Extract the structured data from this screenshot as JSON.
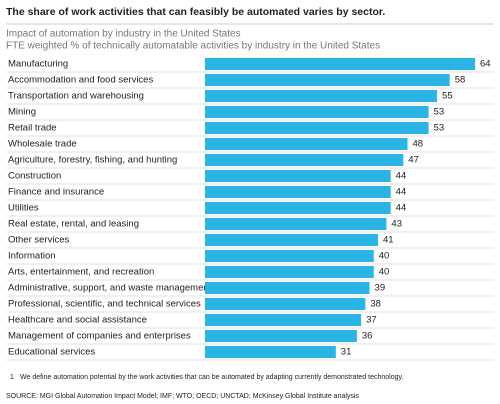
{
  "chart_data": {
    "type": "bar",
    "orientation": "horizontal",
    "title": "The share of work activities that can feasibly be automated varies by sector.",
    "subtitle": "Impact of automation by industry in the United States",
    "subtitle2": "FTE weighted % of technically automatable activities by industry in the United States",
    "categories": [
      "Manufacturing",
      "Accommodation and food services",
      "Transportation and warehousing",
      "Mining",
      "Retail trade",
      "Wholesale trade",
      "Agriculture, forestry, fishing, and hunting",
      "Construction",
      "Finance and insurance",
      "Utilities",
      "Real estate, rental, and leasing",
      "Other services",
      "Information",
      "Arts, entertainment, and recreation",
      "Administrative, support, and waste management",
      "Professional, scientific, and technical services",
      "Healthcare and social assistance",
      "Management of companies and enterprises",
      "Educational services"
    ],
    "values": [
      64,
      58,
      55,
      53,
      53,
      48,
      47,
      44,
      44,
      44,
      43,
      41,
      40,
      40,
      39,
      38,
      37,
      36,
      31
    ],
    "color": "#2bb5e6",
    "footnote": {
      "marker": "1",
      "text": "We define automation potential by the work activities that can be automated by adapting currently demonstrated technology."
    },
    "source": "SOURCE: MGI Global Automation Impact Model; IMF; WTO; OECD; UNCTAD; McKinsey Global Institute analysis"
  }
}
